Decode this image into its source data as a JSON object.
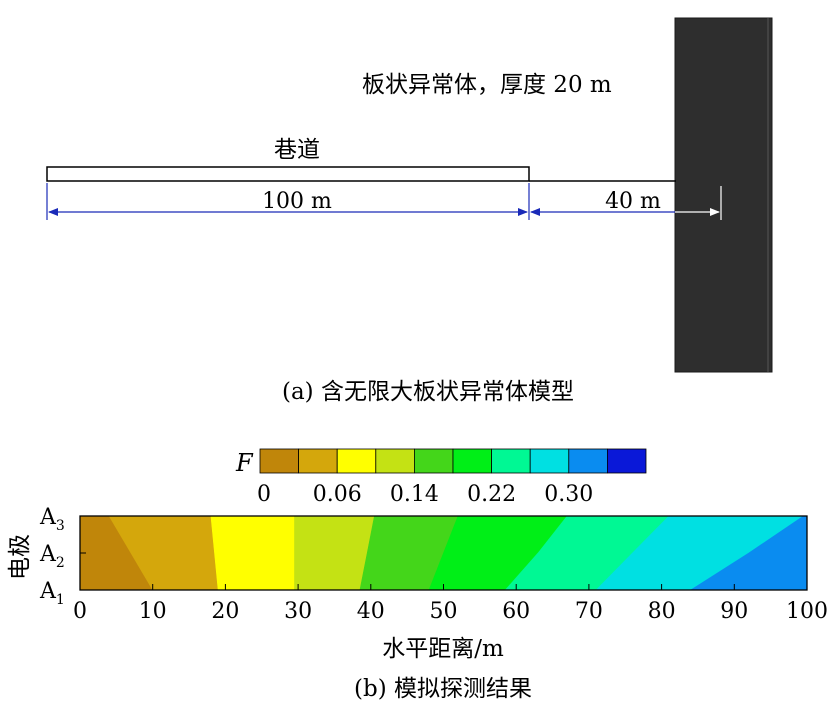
{
  "panel_a": {
    "anomaly_label": "板状异常体，厚度 20 m",
    "tunnel_label": "巷道",
    "dim_tunnel": "100 m",
    "dim_gap": "40 m",
    "caption": "(a) 含无限大板状异常体模型",
    "colors": {
      "anomaly_fill": "#2e2e2e",
      "dimension_line": "#1a2ab8"
    }
  },
  "panel_b": {
    "caption": "(b) 模拟探测结果",
    "colorbar": {
      "symbol": "F",
      "tick_labels": [
        "0",
        "0.06",
        "0.14",
        "0.22",
        "0.30"
      ],
      "colors": [
        "#c0860a",
        "#d4a70c",
        "#ffff00",
        "#c4e214",
        "#44d61a",
        "#00ef17",
        "#00f894",
        "#00e0e2",
        "#0a8cf0",
        "#0a18d8"
      ]
    },
    "chart_data": {
      "type": "heatmap",
      "xlabel": "水平距离/m",
      "ylabel": "电极",
      "xlim": [
        0,
        100
      ],
      "x_ticks": [
        "0",
        "10",
        "20",
        "30",
        "40",
        "50",
        "60",
        "70",
        "80",
        "90",
        "100"
      ],
      "y_ticks": [
        {
          "base": "A",
          "sub": "3"
        },
        {
          "base": "A",
          "sub": "2"
        },
        {
          "base": "A",
          "sub": "1"
        }
      ],
      "ylim": [
        1,
        3
      ],
      "contour_boundaries": [
        {
          "x_at_A1": 10,
          "x_at_A2": 7,
          "x_at_A3": 4
        },
        {
          "x_at_A1": 19,
          "x_at_A2": 18.5,
          "x_at_A3": 18
        },
        {
          "x_at_A1": 29.5,
          "x_at_A2": 29.5,
          "x_at_A3": 29.5
        },
        {
          "x_at_A1": 38.5,
          "x_at_A2": 39.5,
          "x_at_A3": 40.5
        },
        {
          "x_at_A1": 48,
          "x_at_A2": 50,
          "x_at_A3": 52
        },
        {
          "x_at_A1": 58.5,
          "x_at_A2": 63,
          "x_at_A3": 67
        },
        {
          "x_at_A1": 71,
          "x_at_A2": 76,
          "x_at_A3": 81
        },
        {
          "x_at_A1": 84,
          "x_at_A2": 92,
          "x_at_A3": 99.5
        }
      ]
    }
  }
}
